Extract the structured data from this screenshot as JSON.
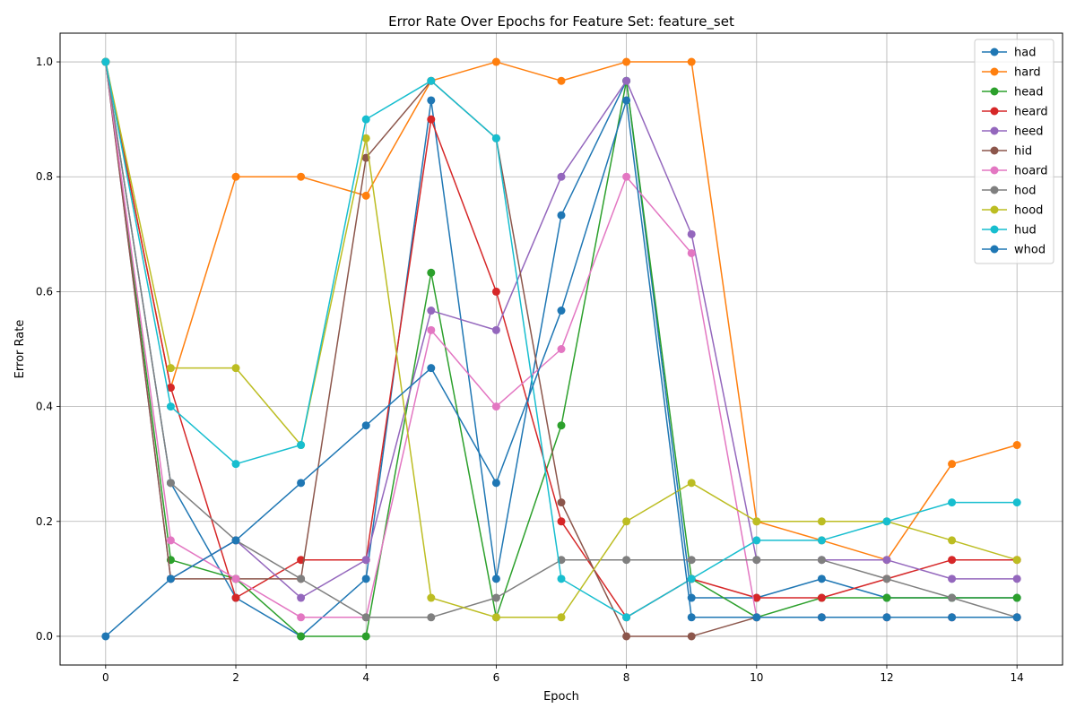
{
  "chart_data": {
    "type": "line",
    "title": "Error Rate Over Epochs for Feature Set: feature_set",
    "xlabel": "Epoch",
    "ylabel": "Error Rate",
    "xlim": [
      -0.7,
      14.7
    ],
    "ylim": [
      -0.05,
      1.05
    ],
    "xticks": [
      0,
      2,
      4,
      6,
      8,
      10,
      12,
      14
    ],
    "yticks": [
      0.0,
      0.2,
      0.4,
      0.6,
      0.8,
      1.0
    ],
    "ytick_labels": [
      "0.0",
      "0.2",
      "0.4",
      "0.6",
      "0.8",
      "1.0"
    ],
    "grid": true,
    "legend_position": "top-right",
    "x": [
      0,
      1,
      2,
      3,
      4,
      5,
      6,
      7,
      8,
      9,
      10,
      11,
      12,
      13,
      14
    ],
    "series": [
      {
        "name": "had",
        "color": "#1f77b4",
        "values": [
          1.0,
          0.267,
          0.067,
          0.0,
          0.1,
          0.933,
          0.1,
          0.733,
          0.967,
          0.067,
          0.067,
          0.1,
          0.067,
          0.067,
          0.067
        ]
      },
      {
        "name": "hard",
        "color": "#ff7f0e",
        "values": [
          1.0,
          0.433,
          0.8,
          0.8,
          0.767,
          0.967,
          1.0,
          0.967,
          1.0,
          1.0,
          0.2,
          0.167,
          0.133,
          0.3,
          0.333
        ]
      },
      {
        "name": "head",
        "color": "#2ca02c",
        "values": [
          1.0,
          0.133,
          0.1,
          0.0,
          0.0,
          0.633,
          0.033,
          0.367,
          0.967,
          0.1,
          0.033,
          0.067,
          0.067,
          0.067,
          0.067
        ]
      },
      {
        "name": "heard",
        "color": "#d62728",
        "values": [
          1.0,
          0.433,
          0.067,
          0.133,
          0.133,
          0.9,
          0.6,
          0.2,
          0.033,
          0.1,
          0.067,
          0.067,
          0.1,
          0.133,
          0.133
        ]
      },
      {
        "name": "heed",
        "color": "#9467bd",
        "values": [
          1.0,
          0.1,
          0.167,
          0.067,
          0.133,
          0.567,
          0.533,
          0.8,
          0.967,
          0.7,
          0.133,
          0.133,
          0.133,
          0.1,
          0.1
        ]
      },
      {
        "name": "hid",
        "color": "#8c564b",
        "values": [
          1.0,
          0.1,
          0.1,
          0.1,
          0.833,
          0.967,
          0.867,
          0.233,
          0.0,
          0.0,
          0.033,
          0.033,
          0.033,
          0.033,
          0.033
        ]
      },
      {
        "name": "hoard",
        "color": "#e377c2",
        "values": [
          1.0,
          0.167,
          0.1,
          0.033,
          0.033,
          0.533,
          0.4,
          0.5,
          0.8,
          0.667,
          0.033,
          0.033,
          0.033,
          0.033,
          0.033
        ]
      },
      {
        "name": "hod",
        "color": "#7f7f7f",
        "values": [
          1.0,
          0.267,
          0.167,
          0.1,
          0.033,
          0.033,
          0.067,
          0.133,
          0.133,
          0.133,
          0.133,
          0.133,
          0.1,
          0.067,
          0.033
        ]
      },
      {
        "name": "hood",
        "color": "#bcbd22",
        "values": [
          1.0,
          0.467,
          0.467,
          0.333,
          0.867,
          0.067,
          0.033,
          0.033,
          0.2,
          0.267,
          0.2,
          0.2,
          0.2,
          0.167,
          0.133
        ]
      },
      {
        "name": "hud",
        "color": "#17becf",
        "values": [
          1.0,
          0.4,
          0.3,
          0.333,
          0.9,
          0.967,
          0.867,
          0.1,
          0.033,
          0.1,
          0.167,
          0.167,
          0.2,
          0.233,
          0.233
        ]
      },
      {
        "name": "whod",
        "color": "#1f77b4",
        "values": [
          0.0,
          0.1,
          0.167,
          0.267,
          0.367,
          0.467,
          0.267,
          0.567,
          0.933,
          0.033,
          0.033,
          0.033,
          0.033,
          0.033,
          0.033
        ]
      }
    ]
  }
}
